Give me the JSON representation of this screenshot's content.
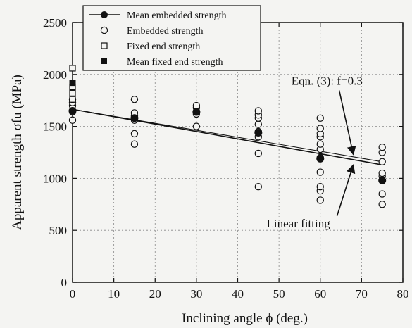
{
  "chart_data": {
    "type": "scatter",
    "xlabel": "Inclining angle ϕ (deg.)",
    "ylabel": "Apparent strength σfu (MPa)",
    "xlim": [
      0,
      80
    ],
    "ylim": [
      0,
      2500
    ],
    "xticks": [
      0,
      10,
      20,
      30,
      40,
      50,
      60,
      70,
      80
    ],
    "yticks": [
      0,
      500,
      1000,
      1500,
      2000,
      2500
    ],
    "legend_position": "top-left",
    "legend": [
      {
        "marker": "filled-circle-line",
        "label": "Mean embedded strength"
      },
      {
        "marker": "open-circle",
        "label": "Embedded strength"
      },
      {
        "marker": "open-square",
        "label": "Fixed end strength"
      },
      {
        "marker": "filled-square",
        "label": "Mean fixed end strength"
      }
    ],
    "series": [
      {
        "name": "Embedded strength",
        "marker": "open-circle",
        "points": [
          [
            0,
            1560
          ],
          [
            0,
            1640
          ],
          [
            0,
            1700
          ],
          [
            0,
            1730
          ],
          [
            0,
            1760
          ],
          [
            15,
            1330
          ],
          [
            15,
            1430
          ],
          [
            15,
            1560
          ],
          [
            15,
            1600
          ],
          [
            15,
            1630
          ],
          [
            15,
            1760
          ],
          [
            30,
            1500
          ],
          [
            30,
            1620
          ],
          [
            30,
            1680
          ],
          [
            30,
            1700
          ],
          [
            45,
            920
          ],
          [
            45,
            1240
          ],
          [
            45,
            1400
          ],
          [
            45,
            1450
          ],
          [
            45,
            1520
          ],
          [
            45,
            1580
          ],
          [
            45,
            1610
          ],
          [
            45,
            1650
          ],
          [
            60,
            790
          ],
          [
            60,
            880
          ],
          [
            60,
            920
          ],
          [
            60,
            1060
          ],
          [
            60,
            1200
          ],
          [
            60,
            1280
          ],
          [
            60,
            1330
          ],
          [
            60,
            1400
          ],
          [
            60,
            1430
          ],
          [
            60,
            1480
          ],
          [
            60,
            1580
          ],
          [
            75,
            750
          ],
          [
            75,
            850
          ],
          [
            75,
            980
          ],
          [
            75,
            1020
          ],
          [
            75,
            1050
          ],
          [
            75,
            1160
          ],
          [
            75,
            1250
          ],
          [
            75,
            1300
          ]
        ]
      },
      {
        "name": "Mean embedded strength",
        "marker": "filled-circle",
        "points": [
          [
            0,
            1650
          ],
          [
            15,
            1580
          ],
          [
            30,
            1640
          ],
          [
            45,
            1440
          ],
          [
            60,
            1190
          ],
          [
            75,
            980
          ]
        ]
      },
      {
        "name": "Fixed end strength",
        "marker": "open-square",
        "points": [
          [
            0,
            1760
          ],
          [
            0,
            1820
          ],
          [
            0,
            1880
          ],
          [
            0,
            2060
          ]
        ]
      },
      {
        "name": "Mean fixed end strength",
        "marker": "filled-square",
        "points": [
          [
            0,
            1920
          ]
        ]
      }
    ],
    "lines": [
      {
        "name": "Linear fitting",
        "x": [
          0,
          75
        ],
        "y": [
          1665,
          1130
        ]
      },
      {
        "name": "Eqn. (3): f=0.3",
        "x": [
          0,
          75
        ],
        "y": [
          1665,
          1160
        ]
      }
    ],
    "annotations": [
      {
        "text": "Eqn. (3): f=0.3",
        "x": 53,
        "y": 1900,
        "arrow_to": [
          68,
          1230
        ]
      },
      {
        "text": "Linear fitting",
        "x": 47,
        "y": 530,
        "arrow_to": [
          68,
          1130
        ]
      }
    ]
  }
}
